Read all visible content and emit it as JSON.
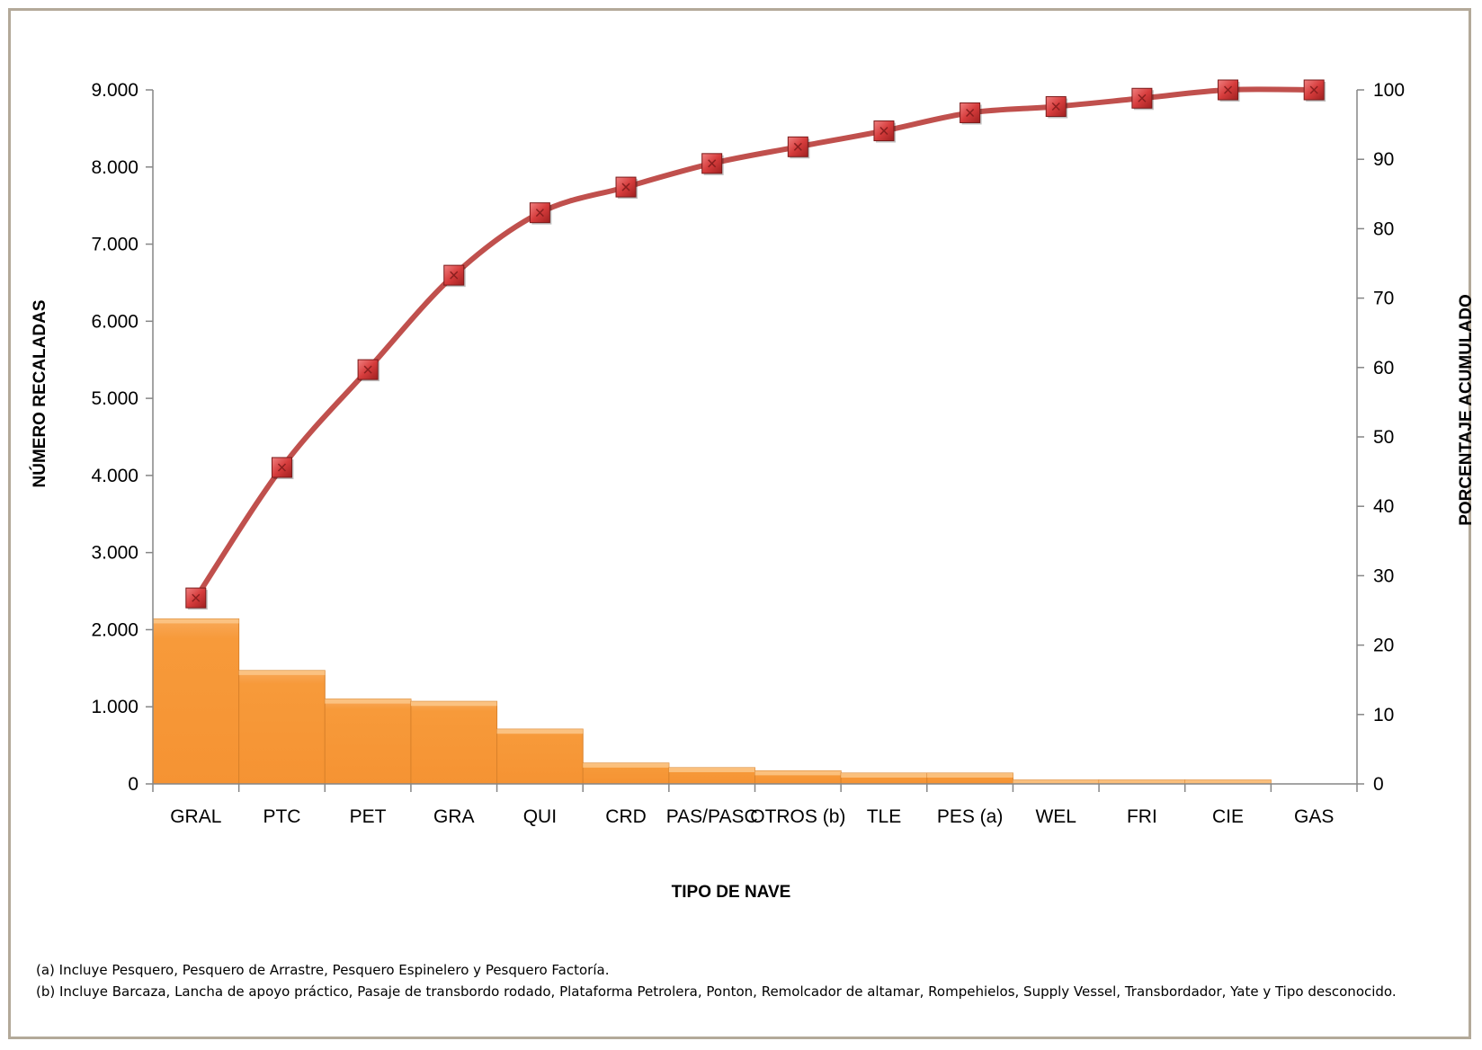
{
  "chart_data": {
    "type": "bar",
    "title": "",
    "xlabel": "TIPO DE NAVE",
    "ylabel": "NÚMERO RECALADAS",
    "y2label": "PORCENTAJE ACUMULADO",
    "categories": [
      "GRAL",
      "PTC",
      "PET",
      "GRA",
      "QUI",
      "CRD",
      "PAS/PASC",
      "OTROS (b)",
      "TLE",
      "PES (a)",
      "WEL",
      "FRI",
      "CIE",
      "GAS"
    ],
    "ylim": [
      0,
      9000
    ],
    "y2lim": [
      0,
      100
    ],
    "yticks": [
      "0",
      "1.000",
      "2.000",
      "3.000",
      "4.000",
      "5.000",
      "6.000",
      "7.000",
      "8.000",
      "9.000"
    ],
    "y2ticks": [
      "0",
      "10",
      "20",
      "30",
      "40",
      "50",
      "60",
      "70",
      "80",
      "90",
      "100"
    ],
    "grid": false,
    "series": [
      {
        "type": "bar",
        "axis": "left",
        "values": [
          2140,
          1470,
          1100,
          1070,
          710,
          270,
          210,
          170,
          140,
          140,
          50,
          50,
          50,
          0
        ]
      },
      {
        "type": "line",
        "axis": "right",
        "values": [
          26.8,
          45.6,
          59.7,
          73.3,
          82.3,
          86.0,
          89.4,
          91.8,
          94.1,
          96.7,
          97.6,
          98.8,
          100.0,
          100.0
        ]
      }
    ],
    "colors": {
      "bar": "#f79d3c",
      "line": "#c0504d",
      "marker": "#d94b4b"
    }
  },
  "notes": {
    "a": "(a) Incluye Pesquero, Pesquero de Arrastre, Pesquero Espinelero y Pesquero Factoría.",
    "b": "(b) Incluye Barcaza, Lancha de apoyo práctico, Pasaje de transbordo rodado, Plataforma Petrolera, Ponton, Remolcador de altamar, Rompehielos, Supply Vessel, Transbordador, Yate y Tipo desconocido."
  }
}
